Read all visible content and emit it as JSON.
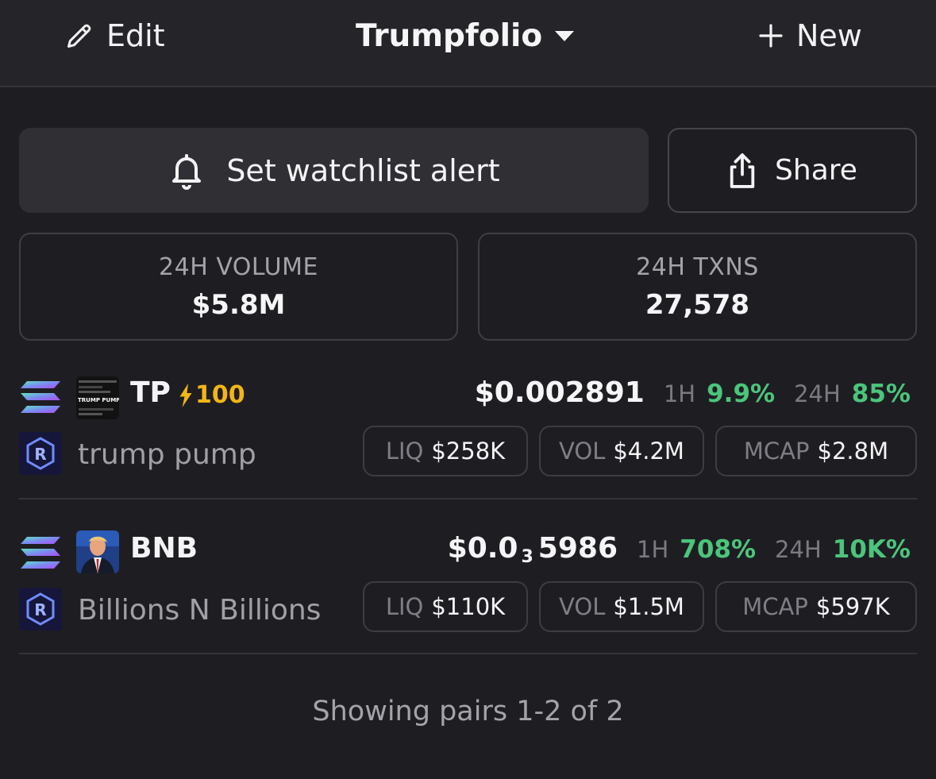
{
  "header": {
    "edit_label": "Edit",
    "title": "Trumpfolio",
    "new_label": "New"
  },
  "actions": {
    "alert_label": "Set watchlist alert",
    "share_label": "Share"
  },
  "stats": {
    "volume_label": "24H VOLUME",
    "volume_value": "$5.8M",
    "txns_label": "24H TXNS",
    "txns_value": "27,578"
  },
  "pairs": [
    {
      "symbol": "TP",
      "boost": "100",
      "name": "trump pump",
      "price": "$0.002891",
      "change_1h_label": "1H",
      "change_1h": "9.9%",
      "change_24h_label": "24H",
      "change_24h": "85%",
      "liq_label": "LIQ",
      "liq": "$258K",
      "vol_label": "VOL",
      "vol": "$4.2M",
      "mcap_label": "MCAP",
      "mcap": "$2.8M",
      "token_image_text": "TRUMP PUMP"
    },
    {
      "symbol": "BNB",
      "name": "Billions N Billions",
      "price_prefix": "$0.0",
      "price_zeros": "3",
      "price_suffix": "5986",
      "change_1h_label": "1H",
      "change_1h": "708%",
      "change_24h_label": "24H",
      "change_24h": "10K%",
      "liq_label": "LIQ",
      "liq": "$110K",
      "vol_label": "VOL",
      "vol": "$1.5M",
      "mcap_label": "MCAP",
      "mcap": "$597K"
    }
  ],
  "footer": {
    "showing": "Showing pairs 1-2 of 2"
  },
  "colors": {
    "background": "#1e1e22",
    "positive": "#4cc57c",
    "boost": "#f3b516",
    "dex_accent": "#6f8cff",
    "chain_gradient": [
      "#5fe3c1",
      "#9a4cf5"
    ]
  },
  "icons": {
    "edit": "pencil-icon",
    "dropdown": "caret-down-icon",
    "new": "plus-icon",
    "alert": "bell-icon",
    "share": "share-icon",
    "chain": "solana-icon",
    "dex": "raydium-icon",
    "boost": "lightning-icon"
  }
}
